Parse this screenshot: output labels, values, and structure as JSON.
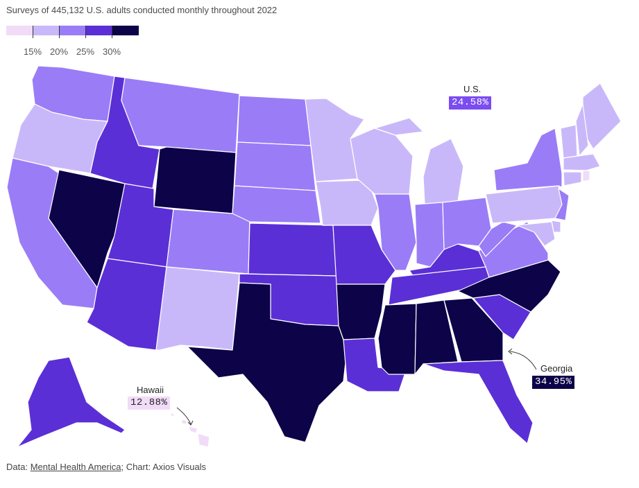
{
  "subtitle": "Surveys of 445,132 U.S. adults conducted monthly throughout 2022",
  "legend": {
    "colors": [
      "#f1dcf8",
      "#c9b8f9",
      "#9a7cf7",
      "#5b2fd6",
      "#0c0348"
    ],
    "labels": [
      "15%",
      "20%",
      "25%",
      "30%"
    ]
  },
  "callouts": {
    "us": {
      "name": "U.S.",
      "value": "24.58%"
    },
    "georgia": {
      "name": "Georgia",
      "value": "34.95%"
    },
    "hawaii": {
      "name": "Hawaii",
      "value": "12.88%"
    }
  },
  "footer": {
    "prefix": "Data: ",
    "source": "Mental Health America",
    "suffix": "; Chart: Axios Visuals"
  },
  "map_data": {
    "WA": 3,
    "OR": 2,
    "CA": 3,
    "NV": 5,
    "ID": 4,
    "MT": 3,
    "WY": 5,
    "UT": 4,
    "AZ": 4,
    "CO": 3,
    "NM": 2,
    "ND": 3,
    "SD": 3,
    "NE": 3,
    "KS": 4,
    "OK": 4,
    "TX": 5,
    "MN": 2,
    "IA": 2,
    "MO": 4,
    "AR": 5,
    "LA": 4,
    "WI": 2,
    "IL": 3,
    "MI": 2,
    "IN": 3,
    "OH": 3,
    "KY": 4,
    "TN": 4,
    "MS": 5,
    "AL": 5,
    "GA": 5,
    "FL": 4,
    "SC": 4,
    "NC": 5,
    "VA": 3,
    "WV": 3,
    "PA": 2,
    "NY": 3,
    "NJ": 3,
    "DE": 2,
    "MD": 2,
    "ME": 2,
    "NH": 2,
    "VT": 2,
    "MA": 2,
    "CT": 2,
    "RI": 1,
    "AK": 4,
    "HI": 1
  }
}
